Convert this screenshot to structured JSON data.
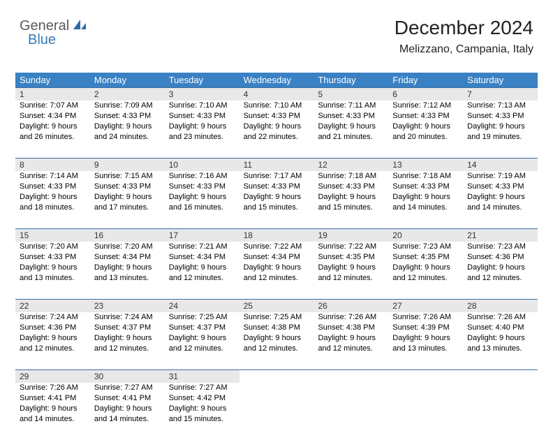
{
  "logo": {
    "part1": "General",
    "part2": "Blue"
  },
  "title": "December 2024",
  "location": "Melizzano, Campania, Italy",
  "colors": {
    "header_bg": "#3a81c4",
    "header_text": "#ffffff",
    "band_bg": "#e8e8e8",
    "band_border": "#3a6fa0",
    "logo_gray": "#5a5a5a",
    "logo_blue": "#3a7ab8",
    "page_bg": "#ffffff"
  },
  "day_headers": [
    "Sunday",
    "Monday",
    "Tuesday",
    "Wednesday",
    "Thursday",
    "Friday",
    "Saturday"
  ],
  "weeks": [
    [
      {
        "num": "1",
        "sunrise": "7:07 AM",
        "sunset": "4:34 PM",
        "daylight": "9 hours and 26 minutes."
      },
      {
        "num": "2",
        "sunrise": "7:09 AM",
        "sunset": "4:33 PM",
        "daylight": "9 hours and 24 minutes."
      },
      {
        "num": "3",
        "sunrise": "7:10 AM",
        "sunset": "4:33 PM",
        "daylight": "9 hours and 23 minutes."
      },
      {
        "num": "4",
        "sunrise": "7:10 AM",
        "sunset": "4:33 PM",
        "daylight": "9 hours and 22 minutes."
      },
      {
        "num": "5",
        "sunrise": "7:11 AM",
        "sunset": "4:33 PM",
        "daylight": "9 hours and 21 minutes."
      },
      {
        "num": "6",
        "sunrise": "7:12 AM",
        "sunset": "4:33 PM",
        "daylight": "9 hours and 20 minutes."
      },
      {
        "num": "7",
        "sunrise": "7:13 AM",
        "sunset": "4:33 PM",
        "daylight": "9 hours and 19 minutes."
      }
    ],
    [
      {
        "num": "8",
        "sunrise": "7:14 AM",
        "sunset": "4:33 PM",
        "daylight": "9 hours and 18 minutes."
      },
      {
        "num": "9",
        "sunrise": "7:15 AM",
        "sunset": "4:33 PM",
        "daylight": "9 hours and 17 minutes."
      },
      {
        "num": "10",
        "sunrise": "7:16 AM",
        "sunset": "4:33 PM",
        "daylight": "9 hours and 16 minutes."
      },
      {
        "num": "11",
        "sunrise": "7:17 AM",
        "sunset": "4:33 PM",
        "daylight": "9 hours and 15 minutes."
      },
      {
        "num": "12",
        "sunrise": "7:18 AM",
        "sunset": "4:33 PM",
        "daylight": "9 hours and 15 minutes."
      },
      {
        "num": "13",
        "sunrise": "7:18 AM",
        "sunset": "4:33 PM",
        "daylight": "9 hours and 14 minutes."
      },
      {
        "num": "14",
        "sunrise": "7:19 AM",
        "sunset": "4:33 PM",
        "daylight": "9 hours and 14 minutes."
      }
    ],
    [
      {
        "num": "15",
        "sunrise": "7:20 AM",
        "sunset": "4:33 PM",
        "daylight": "9 hours and 13 minutes."
      },
      {
        "num": "16",
        "sunrise": "7:20 AM",
        "sunset": "4:34 PM",
        "daylight": "9 hours and 13 minutes."
      },
      {
        "num": "17",
        "sunrise": "7:21 AM",
        "sunset": "4:34 PM",
        "daylight": "9 hours and 12 minutes."
      },
      {
        "num": "18",
        "sunrise": "7:22 AM",
        "sunset": "4:34 PM",
        "daylight": "9 hours and 12 minutes."
      },
      {
        "num": "19",
        "sunrise": "7:22 AM",
        "sunset": "4:35 PM",
        "daylight": "9 hours and 12 minutes."
      },
      {
        "num": "20",
        "sunrise": "7:23 AM",
        "sunset": "4:35 PM",
        "daylight": "9 hours and 12 minutes."
      },
      {
        "num": "21",
        "sunrise": "7:23 AM",
        "sunset": "4:36 PM",
        "daylight": "9 hours and 12 minutes."
      }
    ],
    [
      {
        "num": "22",
        "sunrise": "7:24 AM",
        "sunset": "4:36 PM",
        "daylight": "9 hours and 12 minutes."
      },
      {
        "num": "23",
        "sunrise": "7:24 AM",
        "sunset": "4:37 PM",
        "daylight": "9 hours and 12 minutes."
      },
      {
        "num": "24",
        "sunrise": "7:25 AM",
        "sunset": "4:37 PM",
        "daylight": "9 hours and 12 minutes."
      },
      {
        "num": "25",
        "sunrise": "7:25 AM",
        "sunset": "4:38 PM",
        "daylight": "9 hours and 12 minutes."
      },
      {
        "num": "26",
        "sunrise": "7:26 AM",
        "sunset": "4:38 PM",
        "daylight": "9 hours and 12 minutes."
      },
      {
        "num": "27",
        "sunrise": "7:26 AM",
        "sunset": "4:39 PM",
        "daylight": "9 hours and 13 minutes."
      },
      {
        "num": "28",
        "sunrise": "7:26 AM",
        "sunset": "4:40 PM",
        "daylight": "9 hours and 13 minutes."
      }
    ],
    [
      {
        "num": "29",
        "sunrise": "7:26 AM",
        "sunset": "4:41 PM",
        "daylight": "9 hours and 14 minutes."
      },
      {
        "num": "30",
        "sunrise": "7:27 AM",
        "sunset": "4:41 PM",
        "daylight": "9 hours and 14 minutes."
      },
      {
        "num": "31",
        "sunrise": "7:27 AM",
        "sunset": "4:42 PM",
        "daylight": "9 hours and 15 minutes."
      },
      null,
      null,
      null,
      null
    ]
  ],
  "labels": {
    "sunrise": "Sunrise:",
    "sunset": "Sunset:",
    "daylight": "Daylight:"
  }
}
